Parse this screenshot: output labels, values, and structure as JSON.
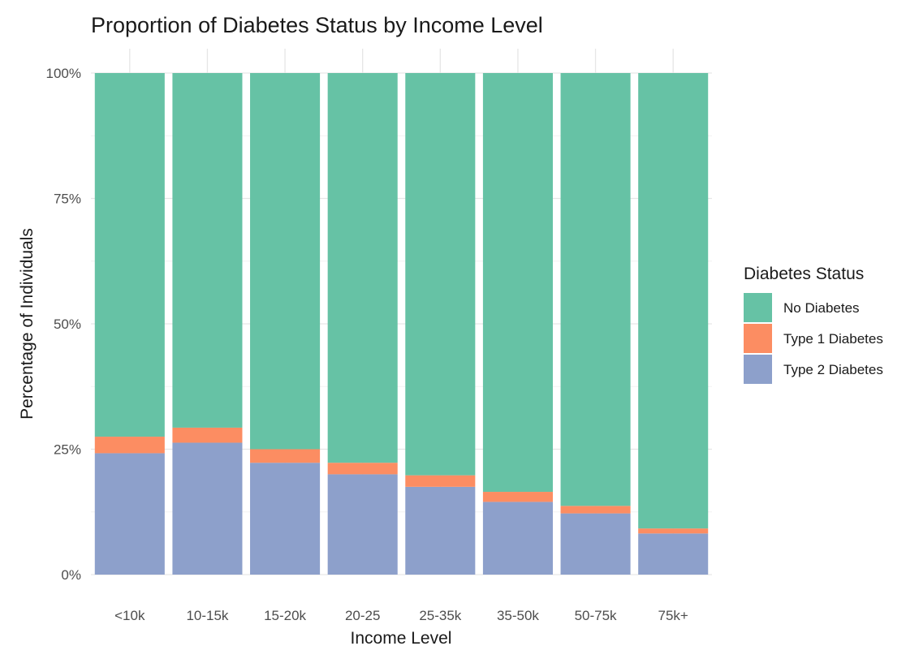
{
  "chart_data": {
    "type": "bar",
    "stacked": "percent",
    "title": "Proportion of Diabetes Status by Income Level",
    "xlabel": "Income Level",
    "ylabel": "Percentage of Individuals",
    "categories": [
      "<10k",
      "10-15k",
      "15-20k",
      "20-25",
      "25-35k",
      "35-50k",
      "50-75k",
      "75k+"
    ],
    "ylim": [
      0,
      1
    ],
    "yticks": [
      0,
      0.25,
      0.5,
      0.75,
      1
    ],
    "ytick_labels": [
      "0%",
      "25%",
      "50%",
      "75%",
      "100%"
    ],
    "grid": true,
    "legend": {
      "title": "Diabetes Status",
      "position": "right"
    },
    "series": [
      {
        "name": "Type 2 Diabetes",
        "color": "#8DA0CB",
        "values": [
          0.242,
          0.263,
          0.223,
          0.2,
          0.175,
          0.145,
          0.122,
          0.082
        ]
      },
      {
        "name": "Type 1 Diabetes",
        "color": "#FC8D62",
        "values": [
          0.033,
          0.03,
          0.027,
          0.023,
          0.023,
          0.02,
          0.015,
          0.01
        ]
      },
      {
        "name": "No Diabetes",
        "color": "#66C2A5",
        "values": [
          0.725,
          0.707,
          0.75,
          0.777,
          0.802,
          0.835,
          0.863,
          0.908
        ]
      }
    ],
    "legend_order": [
      "No Diabetes",
      "Type 1 Diabetes",
      "Type 2 Diabetes"
    ]
  }
}
